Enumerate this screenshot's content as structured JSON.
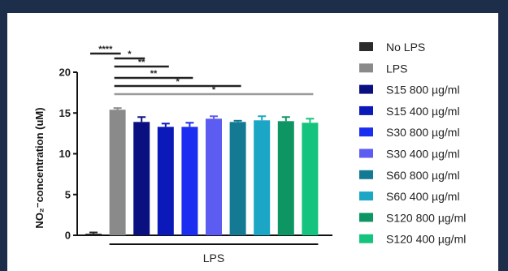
{
  "chart_data": {
    "type": "bar",
    "ylabel": "NO₂⁻concentration (uM)",
    "ylim": [
      0,
      20
    ],
    "yticks": [
      "0",
      "5",
      "10",
      "15",
      "20"
    ],
    "xgroup_label": "LPS",
    "grid": false,
    "legend_position": "right",
    "categories": [
      "No LPS",
      "LPS",
      "S15 800 µg/ml",
      "S15 400 µg/ml",
      "S30 800 µg/ml",
      "S30 400 µg/ml",
      "S60 800 µg/ml",
      "S60 400 µg/ml",
      "S120 800 µg/ml",
      "S120 400 µg/ml"
    ],
    "values": [
      0.2,
      15.4,
      13.9,
      13.3,
      13.3,
      14.3,
      13.9,
      14.1,
      14.0,
      13.8
    ],
    "errors": [
      0.15,
      0.2,
      0.6,
      0.4,
      0.5,
      0.3,
      0.15,
      0.5,
      0.5,
      0.5
    ],
    "colors": [
      "#2b2b2b",
      "#8a8a8a",
      "#0a1080",
      "#0b19b8",
      "#1a2df0",
      "#5c5cf2",
      "#147a94",
      "#1aa6c4",
      "#0d9563",
      "#14c47e"
    ],
    "significance": [
      {
        "from": 0,
        "to": 1,
        "label": "****"
      },
      {
        "from": 1,
        "to": 2,
        "label": "*"
      },
      {
        "from": 1,
        "to": 3,
        "label": "**"
      },
      {
        "from": 1,
        "to": 4,
        "label": "**"
      },
      {
        "from": 1,
        "to": 6,
        "label": "*"
      },
      {
        "from": 1,
        "to": 9,
        "label": "*"
      }
    ]
  }
}
